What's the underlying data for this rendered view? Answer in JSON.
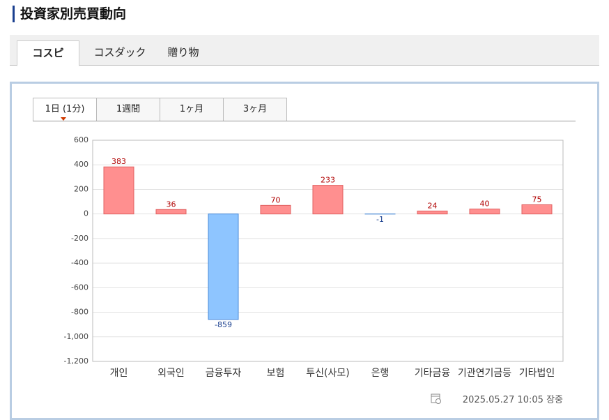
{
  "header": {
    "title": "投資家別売買動向"
  },
  "tabs": [
    "コスピ",
    "コスダック",
    "贈り物"
  ],
  "period_tabs": [
    "1日 (1分)",
    "1週間",
    "1ヶ月",
    "3ヶ月"
  ],
  "timestamp": "2025.05.27 10:05 장중",
  "chart_data": {
    "type": "bar",
    "categories": [
      "개인",
      "외국인",
      "금융투자",
      "보험",
      "투신(사모)",
      "은행",
      "기타금융",
      "기관연기금등",
      "기타법인"
    ],
    "values": [
      383,
      36,
      -859,
      70,
      233,
      -1,
      24,
      40,
      75
    ],
    "positive_color": "#ff8f8f",
    "negative_color": "#8ec5ff",
    "positive_label_color": "#b00000",
    "negative_label_color": "#1a3f8f",
    "ylim": [
      -1200,
      600
    ],
    "yticks": [
      600,
      400,
      200,
      0,
      -200,
      -400,
      -600,
      -800,
      {
        "value": -1000,
        "label": "-1,000"
      },
      {
        "value": -1200,
        "label": "-1,200"
      }
    ],
    "grid": true
  }
}
